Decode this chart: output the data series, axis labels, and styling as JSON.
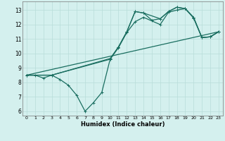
{
  "xlabel": "Humidex (Indice chaleur)",
  "bg_color": "#d4f0ee",
  "grid_color": "#b8ddd9",
  "line_color": "#1a6e60",
  "xlim": [
    -0.5,
    23.5
  ],
  "ylim": [
    5.7,
    13.6
  ],
  "xticks": [
    0,
    1,
    2,
    3,
    4,
    5,
    6,
    7,
    8,
    9,
    10,
    11,
    12,
    13,
    14,
    15,
    16,
    17,
    18,
    19,
    20,
    21,
    22,
    23
  ],
  "yticks": [
    6,
    7,
    8,
    9,
    10,
    11,
    12,
    13
  ],
  "line1_x": [
    0,
    1,
    2,
    3,
    4,
    5,
    6,
    7,
    8,
    9,
    10,
    11,
    12,
    13,
    14,
    15,
    16,
    17,
    18,
    19,
    20,
    21,
    22,
    23
  ],
  "line1_y": [
    8.5,
    8.5,
    8.3,
    8.5,
    8.2,
    7.8,
    7.1,
    6.0,
    6.6,
    7.3,
    9.6,
    10.45,
    11.5,
    12.9,
    12.8,
    12.3,
    12.4,
    12.9,
    13.2,
    13.1,
    12.5,
    11.1,
    11.15,
    11.5
  ],
  "line2_x": [
    0,
    3,
    10,
    11,
    12,
    13,
    14,
    16,
    17,
    18,
    19,
    20,
    21,
    22,
    23
  ],
  "line2_y": [
    8.5,
    8.5,
    9.65,
    10.45,
    11.5,
    12.9,
    12.8,
    12.4,
    12.9,
    13.2,
    13.1,
    12.5,
    11.1,
    11.15,
    11.5
  ],
  "line3_x": [
    0,
    23
  ],
  "line3_y": [
    8.5,
    11.5
  ],
  "line4_x": [
    0,
    3,
    10,
    11,
    12,
    13,
    14,
    16,
    17,
    18,
    19,
    20,
    21,
    22,
    23
  ],
  "line4_y": [
    8.5,
    8.5,
    9.6,
    10.4,
    11.45,
    12.2,
    12.5,
    12.0,
    12.85,
    13.0,
    13.1,
    12.45,
    11.1,
    11.15,
    11.5
  ]
}
